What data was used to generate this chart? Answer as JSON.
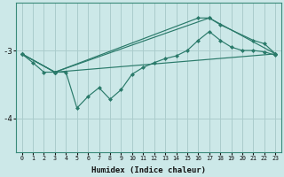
{
  "title": "",
  "xlabel": "Humidex (Indice chaleur)",
  "ylabel": "",
  "background_color": "#cce8e8",
  "grid_color": "#aacccc",
  "line_color": "#2a7a6a",
  "xlim": [
    -0.5,
    23.5
  ],
  "ylim": [
    -4.5,
    -2.3
  ],
  "yticks": [
    -4,
    -3
  ],
  "xticks": [
    0,
    1,
    2,
    3,
    4,
    5,
    6,
    7,
    8,
    9,
    10,
    11,
    12,
    13,
    14,
    15,
    16,
    17,
    18,
    19,
    20,
    21,
    22,
    23
  ],
  "series": [
    {
      "x": [
        0,
        3,
        23
      ],
      "y": [
        -3.05,
        -3.32,
        -3.05
      ]
    },
    {
      "x": [
        0,
        3,
        17,
        23
      ],
      "y": [
        -3.05,
        -3.32,
        -2.52,
        -3.05
      ]
    },
    {
      "x": [
        0,
        3,
        16,
        17,
        18,
        21,
        22,
        23
      ],
      "y": [
        -3.05,
        -3.32,
        -2.52,
        -2.52,
        -2.62,
        -2.85,
        -2.9,
        -3.05
      ]
    },
    {
      "x": [
        0,
        1,
        2,
        3,
        4,
        5,
        6,
        7,
        8,
        9,
        10,
        11,
        12,
        13,
        14,
        15,
        16,
        17,
        18,
        19,
        20,
        21,
        22,
        23
      ],
      "y": [
        -3.05,
        -3.18,
        -3.32,
        -3.32,
        -3.32,
        -3.85,
        -3.68,
        -3.55,
        -3.72,
        -3.58,
        -3.35,
        -3.25,
        -3.18,
        -3.12,
        -3.08,
        -3.0,
        -2.85,
        -2.72,
        -2.85,
        -2.95,
        -3.0,
        -3.0,
        -3.02,
        -3.07
      ]
    }
  ]
}
